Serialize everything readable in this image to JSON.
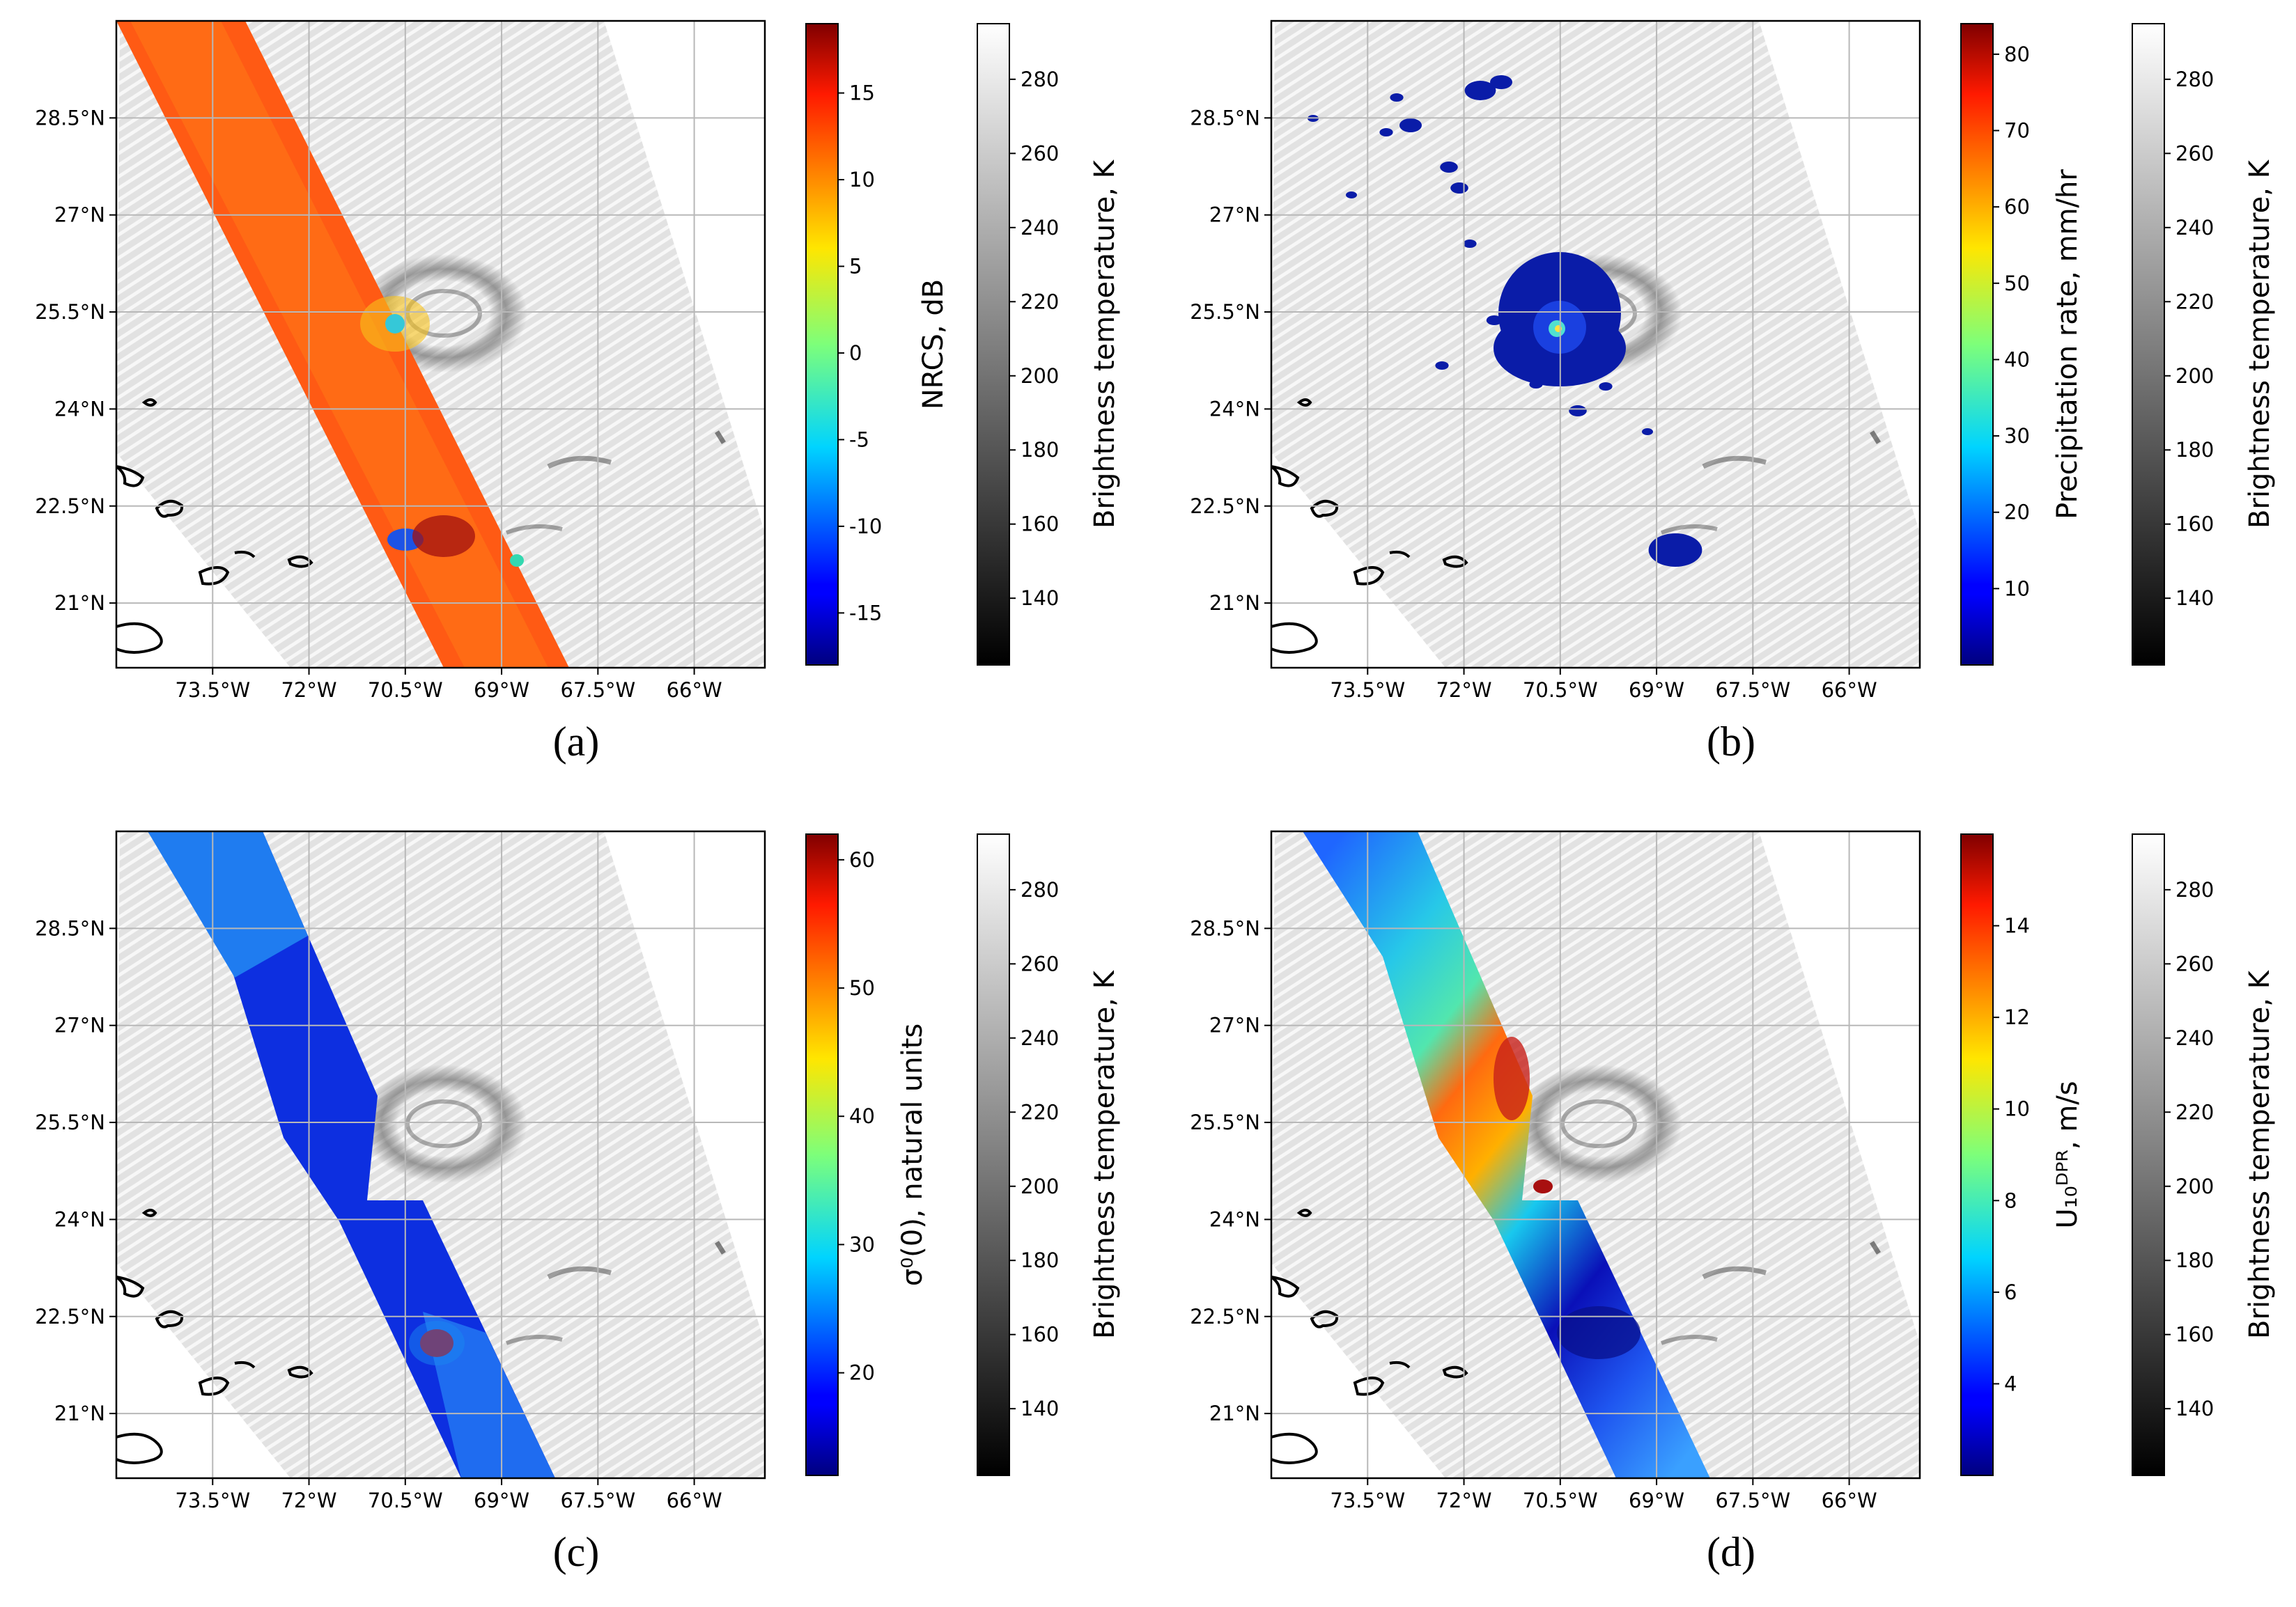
{
  "figure": {
    "panels": [
      "a",
      "b",
      "c",
      "d"
    ]
  },
  "chart_data": [
    {
      "id": "a",
      "panel_label": "(a)",
      "type": "heatmap",
      "title": "",
      "x_ticks": [
        "73.5°W",
        "72°W",
        "70.5°W",
        "69°W",
        "67.5°W",
        "66°W"
      ],
      "y_ticks": [
        "28.5°N",
        "27°N",
        "25.5°N",
        "24°N",
        "22.5°N",
        "21°N"
      ],
      "x_values": [
        -73.5,
        -72.0,
        -70.5,
        -69.0,
        -67.5,
        -66.0
      ],
      "y_values": [
        28.5,
        27.0,
        25.5,
        24.0,
        22.5,
        21.0
      ],
      "xlim": [
        -75.0,
        -64.9
      ],
      "ylim": [
        20.0,
        30.0
      ],
      "overlay": "NRCS swath",
      "cbar1": {
        "label": "NRCS, dB",
        "colormap": "jet",
        "ticks": [
          -15,
          -10,
          -5,
          0,
          5,
          10,
          15
        ],
        "range": [
          -18,
          19
        ]
      },
      "cbar2": {
        "label": "Brightness temperature, K",
        "colormap": "gray",
        "ticks": [
          140,
          160,
          180,
          200,
          220,
          240,
          260,
          280
        ],
        "range": [
          122,
          295
        ]
      }
    },
    {
      "id": "b",
      "panel_label": "(b)",
      "type": "heatmap",
      "title": "",
      "x_ticks": [
        "73.5°W",
        "72°W",
        "70.5°W",
        "69°W",
        "67.5°W",
        "66°W"
      ],
      "y_ticks": [
        "28.5°N",
        "27°N",
        "25.5°N",
        "24°N",
        "22.5°N",
        "21°N"
      ],
      "x_values": [
        -73.5,
        -72.0,
        -70.5,
        -69.0,
        -67.5,
        -66.0
      ],
      "y_values": [
        28.5,
        27.0,
        25.5,
        24.0,
        22.5,
        21.0
      ],
      "xlim": [
        -75.0,
        -64.9
      ],
      "ylim": [
        20.0,
        30.0
      ],
      "overlay": "precipitation",
      "cbar1": {
        "label": "Precipitation rate, mm/hr",
        "colormap": "jet",
        "ticks": [
          10,
          20,
          30,
          40,
          50,
          60,
          70,
          80
        ],
        "range": [
          0,
          84
        ]
      },
      "cbar2": {
        "label": "Brightness temperature, K",
        "colormap": "gray",
        "ticks": [
          140,
          160,
          180,
          200,
          220,
          240,
          260,
          280
        ],
        "range": [
          122,
          295
        ]
      }
    },
    {
      "id": "c",
      "panel_label": "(c)",
      "type": "heatmap",
      "title": "",
      "x_ticks": [
        "73.5°W",
        "72°W",
        "70.5°W",
        "69°W",
        "67.5°W",
        "66°W"
      ],
      "y_ticks": [
        "28.5°N",
        "27°N",
        "25.5°N",
        "24°N",
        "22.5°N",
        "21°N"
      ],
      "x_values": [
        -73.5,
        -72.0,
        -70.5,
        -69.0,
        -67.5,
        -66.0
      ],
      "y_values": [
        28.5,
        27.0,
        25.5,
        24.0,
        22.5,
        21.0
      ],
      "xlim": [
        -75.0,
        -64.9
      ],
      "ylim": [
        20.0,
        30.0
      ],
      "overlay": "sigma0 swath",
      "cbar1": {
        "label": "σ⁰(0), natural units",
        "colormap": "jet",
        "ticks": [
          20,
          30,
          40,
          50,
          60
        ],
        "range": [
          12,
          62
        ]
      },
      "cbar2": {
        "label": "Brightness temperature, K",
        "colormap": "gray",
        "ticks": [
          140,
          160,
          180,
          200,
          220,
          240,
          260,
          280
        ],
        "range": [
          122,
          295
        ]
      }
    },
    {
      "id": "d",
      "panel_label": "(d)",
      "type": "heatmap",
      "title": "",
      "x_ticks": [
        "73.5°W",
        "72°W",
        "70.5°W",
        "69°W",
        "67.5°W",
        "66°W"
      ],
      "y_ticks": [
        "28.5°N",
        "27°N",
        "25.5°N",
        "24°N",
        "22.5°N",
        "21°N"
      ],
      "x_values": [
        -73.5,
        -72.0,
        -70.5,
        -69.0,
        -67.5,
        -66.0
      ],
      "y_values": [
        28.5,
        27.0,
        25.5,
        24.0,
        22.5,
        21.0
      ],
      "xlim": [
        -75.0,
        -64.9
      ],
      "ylim": [
        20.0,
        30.0
      ],
      "overlay": "wind swath",
      "cbar1": {
        "label": "U₁₀ᴰᴾᴿ, m/s",
        "colormap": "jet",
        "ticks": [
          4,
          6,
          8,
          10,
          12,
          14
        ],
        "range": [
          2,
          16
        ]
      },
      "cbar2": {
        "label": "Brightness temperature, K",
        "colormap": "gray",
        "ticks": [
          140,
          160,
          180,
          200,
          220,
          240,
          260,
          280
        ],
        "range": [
          122,
          295
        ]
      }
    }
  ]
}
